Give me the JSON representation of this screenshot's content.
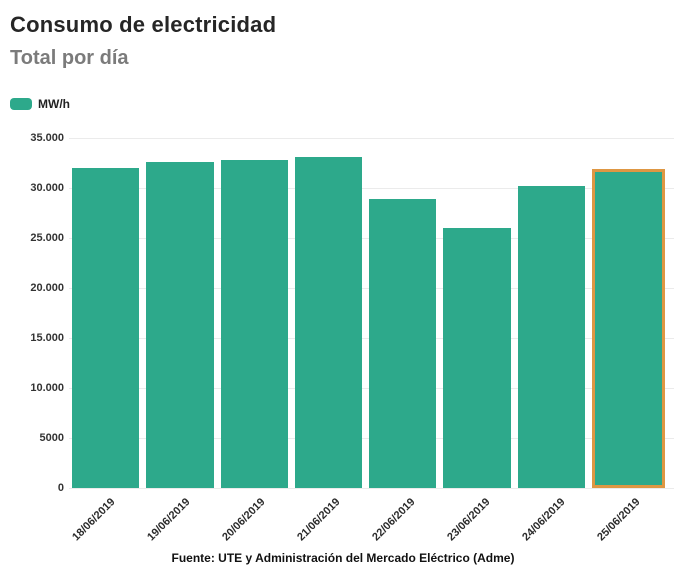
{
  "header": {
    "title": "Consumo de electricidad",
    "subtitle": "Total por día"
  },
  "legend": {
    "label": "MW/h",
    "swatch_color": "#2DA98B"
  },
  "chart_data": {
    "type": "bar",
    "title": "Consumo de electricidad",
    "subtitle": "Total por día",
    "xlabel": "",
    "ylabel": "MW/h",
    "categories": [
      "18/06/2019",
      "19/06/2019",
      "20/06/2019",
      "21/06/2019",
      "22/06/2019",
      "23/06/2019",
      "24/06/2019",
      "25/06/2019"
    ],
    "values": [
      32000,
      32600,
      32800,
      33100,
      28900,
      26000,
      30200,
      31900
    ],
    "bar_color": "#2DA98B",
    "highlight_index": 7,
    "highlight_border_color": "#DE9743",
    "ylim": [
      0,
      35000
    ],
    "ytick_step": 5000,
    "ytick_labels": [
      "0",
      "5000",
      "10.000",
      "15.000",
      "20.000",
      "25.000",
      "30.000",
      "35.000"
    ],
    "grid": true,
    "legend_position": "top-left"
  },
  "footer": {
    "source": "Fuente: UTE y Administración del Mercado Eléctrico (Adme)"
  }
}
